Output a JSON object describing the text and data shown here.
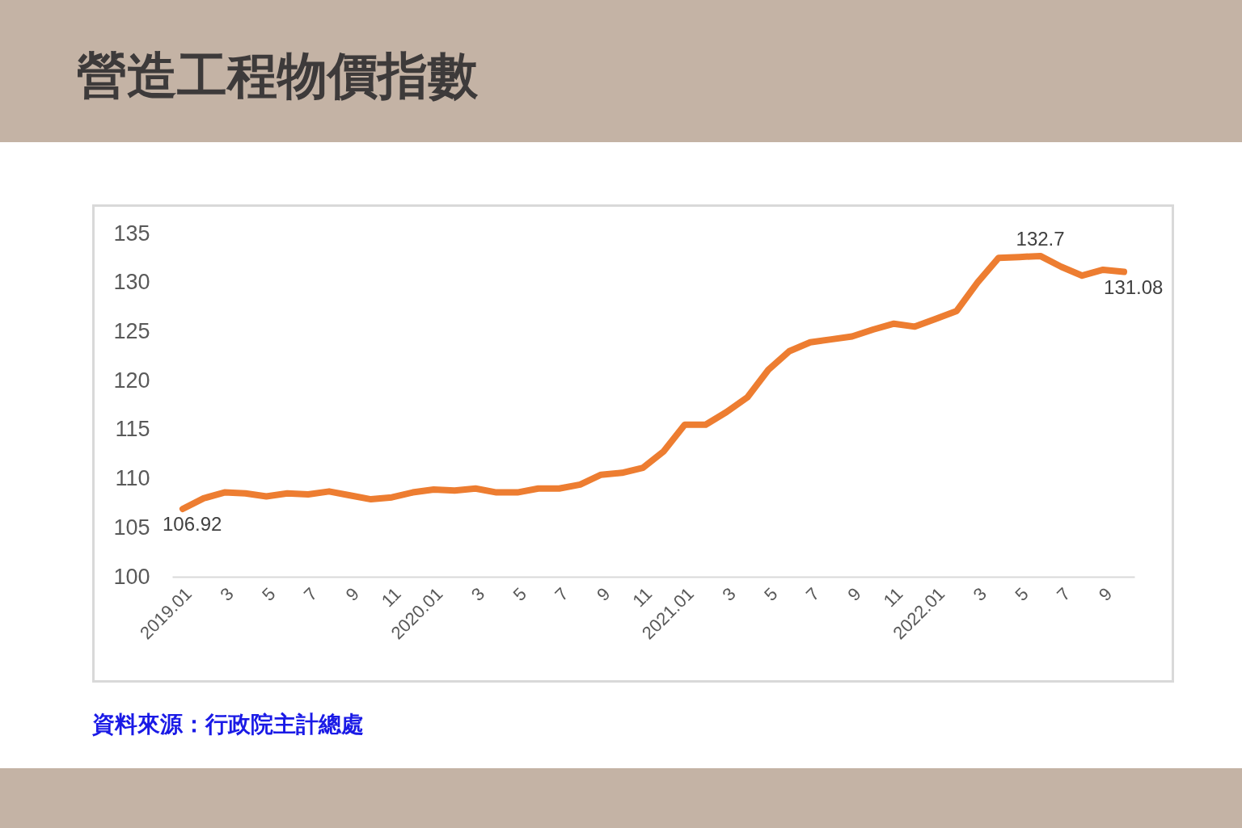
{
  "chart_data": {
    "type": "line",
    "title": "營造工程物價指數",
    "categories": [
      "2019.01",
      null,
      "3",
      null,
      "5",
      null,
      "7",
      null,
      "9",
      null,
      "11",
      null,
      "2020.01",
      null,
      "3",
      null,
      "5",
      null,
      "7",
      null,
      "9",
      null,
      "11",
      null,
      "2021.01",
      null,
      "3",
      null,
      "5",
      null,
      "7",
      null,
      "9",
      null,
      "11",
      null,
      "2022.01",
      null,
      "3",
      null,
      "5",
      null,
      "7",
      null,
      "9",
      null
    ],
    "series": [
      {
        "color": "#ed7d31",
        "values": [
          106.92,
          108.0,
          108.6,
          108.5,
          108.2,
          108.5,
          108.4,
          108.7,
          108.3,
          107.9,
          108.1,
          108.6,
          108.9,
          108.8,
          109.0,
          108.6,
          108.6,
          109.0,
          109.0,
          109.4,
          110.4,
          110.6,
          111.1,
          112.8,
          115.5,
          115.5,
          116.8,
          118.3,
          121.1,
          123.0,
          123.9,
          124.2,
          124.5,
          125.2,
          125.8,
          125.5,
          126.3,
          127.1,
          130.0,
          132.5,
          132.6,
          132.7,
          131.6,
          130.7,
          131.3,
          131.08
        ],
        "value_labels": [
          "106.92",
          null,
          null,
          null,
          null,
          null,
          null,
          null,
          null,
          null,
          null,
          null,
          null,
          null,
          null,
          null,
          null,
          null,
          null,
          null,
          null,
          null,
          null,
          null,
          null,
          null,
          null,
          null,
          null,
          null,
          null,
          null,
          null,
          null,
          null,
          null,
          null,
          null,
          null,
          null,
          null,
          "132.7",
          null,
          null,
          null,
          "131.08"
        ]
      }
    ],
    "ylim": [
      100,
      135
    ],
    "yticks": [
      100,
      105,
      110,
      115,
      120,
      125,
      130,
      135
    ],
    "annotations": [
      "資料來源：行政院主計總處"
    ]
  }
}
